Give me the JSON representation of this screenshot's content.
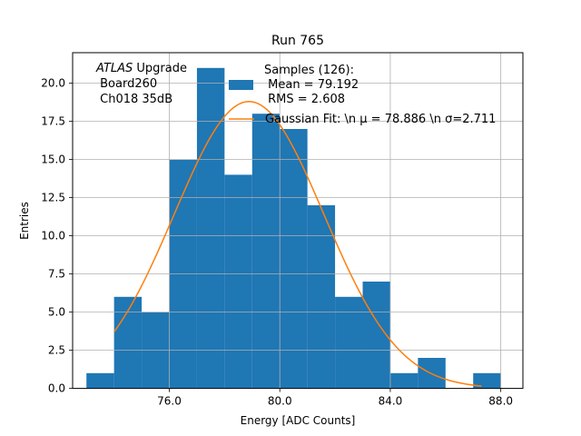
{
  "chart_data": {
    "type": "bar",
    "title": "Run 765",
    "xlabel": "Energy [ADC Counts]",
    "ylabel": "Entries",
    "xlim": [
      72.5,
      88.8
    ],
    "ylim": [
      0,
      22
    ],
    "grid": true,
    "x_ticks": [
      76.0,
      80.0,
      84.0,
      88.0
    ],
    "x_tick_labels": [
      "76.0",
      "80.0",
      "84.0",
      "88.0"
    ],
    "y_ticks": [
      0,
      2.5,
      5,
      7.5,
      10,
      12.5,
      15,
      17.5,
      20
    ],
    "y_tick_labels": [
      "0.0",
      "2.5",
      "5.0",
      "7.5",
      "10.0",
      "12.5",
      "15.0",
      "17.5",
      "20.0"
    ],
    "bin_edges": [
      73.0,
      74.0,
      75.0,
      76.0,
      77.0,
      78.0,
      79.0,
      80.0,
      81.0,
      82.0,
      83.0,
      84.0,
      85.0,
      86.0,
      87.0,
      88.0
    ],
    "counts": [
      1,
      6,
      5,
      15,
      21,
      14,
      18,
      17,
      12,
      6,
      7,
      1,
      2,
      0,
      1
    ],
    "gaussian_fit": {
      "mu": 78.886,
      "sigma": 2.711,
      "x_range": [
        74.0,
        87.3
      ],
      "amplitude": 18.8
    },
    "annotation_lines": [
      "ATLAS Upgrade",
      " Board260",
      " Ch018 35dB"
    ],
    "legend": {
      "placement": "top-right",
      "hist_label_lines": [
        "Samples (126):",
        " Mean = 79.192",
        " RMS = 2.608"
      ],
      "fit_label": "Gaussian Fit: \\n μ = 78.886 \\n σ=2.711"
    },
    "colors": {
      "hist": "#1f77b4",
      "fit": "#ff7f0e",
      "grid": "#b0b0b0"
    }
  }
}
